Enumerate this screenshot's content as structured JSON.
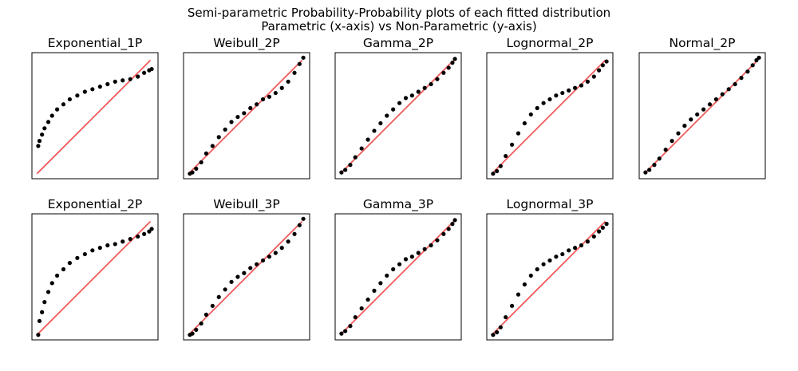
{
  "figure": {
    "title_line1": "Semi-parametric Probability-Probability plots of each fitted distribution",
    "title_line2": "Parametric (x-axis) vs Non-Parametric (y-axis)"
  },
  "colors": {
    "reference_line": "#f15a5a",
    "points": "#000000",
    "axes": "#000000"
  },
  "chart_data": [
    {
      "type": "scatter",
      "title": "Exponential_1P",
      "xlim": [
        0,
        1
      ],
      "ylim": [
        0,
        1
      ],
      "reference_line": [
        [
          0.04,
          0.04
        ],
        [
          0.94,
          0.94
        ]
      ],
      "x": [
        0.05,
        0.06,
        0.08,
        0.1,
        0.13,
        0.16,
        0.2,
        0.25,
        0.3,
        0.36,
        0.42,
        0.48,
        0.54,
        0.6,
        0.66,
        0.72,
        0.78,
        0.84,
        0.89,
        0.93,
        0.95
      ],
      "y": [
        0.26,
        0.3,
        0.35,
        0.4,
        0.45,
        0.5,
        0.55,
        0.59,
        0.63,
        0.66,
        0.69,
        0.71,
        0.73,
        0.75,
        0.77,
        0.78,
        0.79,
        0.81,
        0.84,
        0.86,
        0.87
      ]
    },
    {
      "type": "scatter",
      "title": "Weibull_2P",
      "xlim": [
        0,
        1
      ],
      "ylim": [
        0,
        1
      ],
      "reference_line": [
        [
          0.05,
          0.05
        ],
        [
          0.94,
          0.94
        ]
      ],
      "x": [
        0.05,
        0.07,
        0.1,
        0.14,
        0.18,
        0.23,
        0.28,
        0.33,
        0.38,
        0.43,
        0.48,
        0.53,
        0.58,
        0.63,
        0.68,
        0.73,
        0.78,
        0.83,
        0.88,
        0.92,
        0.95
      ],
      "y": [
        0.04,
        0.05,
        0.08,
        0.13,
        0.2,
        0.26,
        0.33,
        0.39,
        0.45,
        0.49,
        0.52,
        0.56,
        0.59,
        0.63,
        0.65,
        0.68,
        0.72,
        0.77,
        0.84,
        0.91,
        0.96
      ]
    },
    {
      "type": "scatter",
      "title": "Gamma_2P",
      "xlim": [
        0,
        1
      ],
      "ylim": [
        0,
        1
      ],
      "reference_line": [
        [
          0.05,
          0.05
        ],
        [
          0.94,
          0.94
        ]
      ],
      "x": [
        0.05,
        0.08,
        0.12,
        0.16,
        0.21,
        0.26,
        0.31,
        0.36,
        0.41,
        0.46,
        0.51,
        0.56,
        0.61,
        0.66,
        0.71,
        0.76,
        0.81,
        0.86,
        0.9,
        0.93,
        0.95
      ],
      "y": [
        0.05,
        0.07,
        0.11,
        0.17,
        0.24,
        0.31,
        0.38,
        0.44,
        0.5,
        0.55,
        0.6,
        0.64,
        0.66,
        0.69,
        0.72,
        0.75,
        0.79,
        0.84,
        0.88,
        0.92,
        0.95
      ]
    },
    {
      "type": "scatter",
      "title": "Lognormal_2P",
      "xlim": [
        0,
        1
      ],
      "ylim": [
        0,
        1
      ],
      "reference_line": [
        [
          0.05,
          0.05
        ],
        [
          0.94,
          0.94
        ]
      ],
      "x": [
        0.05,
        0.08,
        0.11,
        0.15,
        0.2,
        0.25,
        0.3,
        0.35,
        0.4,
        0.45,
        0.5,
        0.55,
        0.6,
        0.65,
        0.7,
        0.75,
        0.8,
        0.85,
        0.89,
        0.92,
        0.95
      ],
      "y": [
        0.04,
        0.06,
        0.1,
        0.18,
        0.27,
        0.36,
        0.44,
        0.51,
        0.56,
        0.6,
        0.63,
        0.66,
        0.68,
        0.7,
        0.72,
        0.74,
        0.77,
        0.81,
        0.86,
        0.9,
        0.93
      ]
    },
    {
      "type": "scatter",
      "title": "Normal_2P",
      "xlim": [
        0,
        1
      ],
      "ylim": [
        0,
        1
      ],
      "reference_line": [
        [
          0.05,
          0.05
        ],
        [
          0.94,
          0.94
        ]
      ],
      "x": [
        0.05,
        0.08,
        0.12,
        0.16,
        0.21,
        0.26,
        0.31,
        0.36,
        0.41,
        0.46,
        0.51,
        0.56,
        0.61,
        0.66,
        0.71,
        0.76,
        0.81,
        0.86,
        0.9,
        0.93,
        0.95
      ],
      "y": [
        0.05,
        0.07,
        0.11,
        0.16,
        0.23,
        0.3,
        0.36,
        0.42,
        0.47,
        0.51,
        0.55,
        0.59,
        0.63,
        0.67,
        0.71,
        0.75,
        0.8,
        0.85,
        0.9,
        0.94,
        0.96
      ]
    },
    {
      "type": "scatter",
      "title": "Exponential_2P",
      "xlim": [
        0,
        1
      ],
      "ylim": [
        0,
        1
      ],
      "reference_line": [
        [
          0.04,
          0.04
        ],
        [
          0.94,
          0.94
        ]
      ],
      "x": [
        0.05,
        0.06,
        0.08,
        0.1,
        0.13,
        0.16,
        0.2,
        0.25,
        0.3,
        0.36,
        0.42,
        0.48,
        0.54,
        0.6,
        0.66,
        0.72,
        0.78,
        0.84,
        0.89,
        0.93,
        0.95
      ],
      "y": [
        0.04,
        0.15,
        0.22,
        0.3,
        0.38,
        0.45,
        0.51,
        0.56,
        0.61,
        0.65,
        0.68,
        0.71,
        0.73,
        0.75,
        0.76,
        0.78,
        0.8,
        0.82,
        0.84,
        0.86,
        0.88
      ]
    },
    {
      "type": "scatter",
      "title": "Weibull_3P",
      "xlim": [
        0,
        1
      ],
      "ylim": [
        0,
        1
      ],
      "reference_line": [
        [
          0.05,
          0.05
        ],
        [
          0.94,
          0.94
        ]
      ],
      "x": [
        0.05,
        0.07,
        0.1,
        0.14,
        0.18,
        0.23,
        0.28,
        0.33,
        0.38,
        0.43,
        0.48,
        0.53,
        0.58,
        0.63,
        0.68,
        0.73,
        0.78,
        0.83,
        0.88,
        0.92,
        0.95
      ],
      "y": [
        0.04,
        0.05,
        0.08,
        0.13,
        0.2,
        0.27,
        0.34,
        0.4,
        0.46,
        0.5,
        0.53,
        0.57,
        0.6,
        0.63,
        0.66,
        0.69,
        0.73,
        0.78,
        0.84,
        0.91,
        0.96
      ]
    },
    {
      "type": "scatter",
      "title": "Gamma_3P",
      "xlim": [
        0,
        1
      ],
      "ylim": [
        0,
        1
      ],
      "reference_line": [
        [
          0.05,
          0.05
        ],
        [
          0.94,
          0.94
        ]
      ],
      "x": [
        0.05,
        0.08,
        0.12,
        0.16,
        0.21,
        0.26,
        0.31,
        0.36,
        0.41,
        0.46,
        0.51,
        0.56,
        0.61,
        0.66,
        0.71,
        0.76,
        0.81,
        0.86,
        0.9,
        0.93,
        0.95
      ],
      "y": [
        0.05,
        0.07,
        0.11,
        0.18,
        0.25,
        0.32,
        0.39,
        0.45,
        0.51,
        0.56,
        0.6,
        0.64,
        0.66,
        0.69,
        0.72,
        0.75,
        0.79,
        0.84,
        0.88,
        0.92,
        0.95
      ]
    },
    {
      "type": "scatter",
      "title": "Lognormal_3P",
      "xlim": [
        0,
        1
      ],
      "ylim": [
        0,
        1
      ],
      "reference_line": [
        [
          0.05,
          0.05
        ],
        [
          0.94,
          0.94
        ]
      ],
      "x": [
        0.05,
        0.08,
        0.11,
        0.15,
        0.2,
        0.25,
        0.3,
        0.35,
        0.4,
        0.45,
        0.5,
        0.55,
        0.6,
        0.65,
        0.7,
        0.75,
        0.8,
        0.85,
        0.89,
        0.92,
        0.95
      ],
      "y": [
        0.04,
        0.06,
        0.1,
        0.18,
        0.27,
        0.36,
        0.44,
        0.51,
        0.56,
        0.6,
        0.63,
        0.66,
        0.68,
        0.71,
        0.73,
        0.75,
        0.78,
        0.82,
        0.86,
        0.89,
        0.92
      ]
    }
  ]
}
